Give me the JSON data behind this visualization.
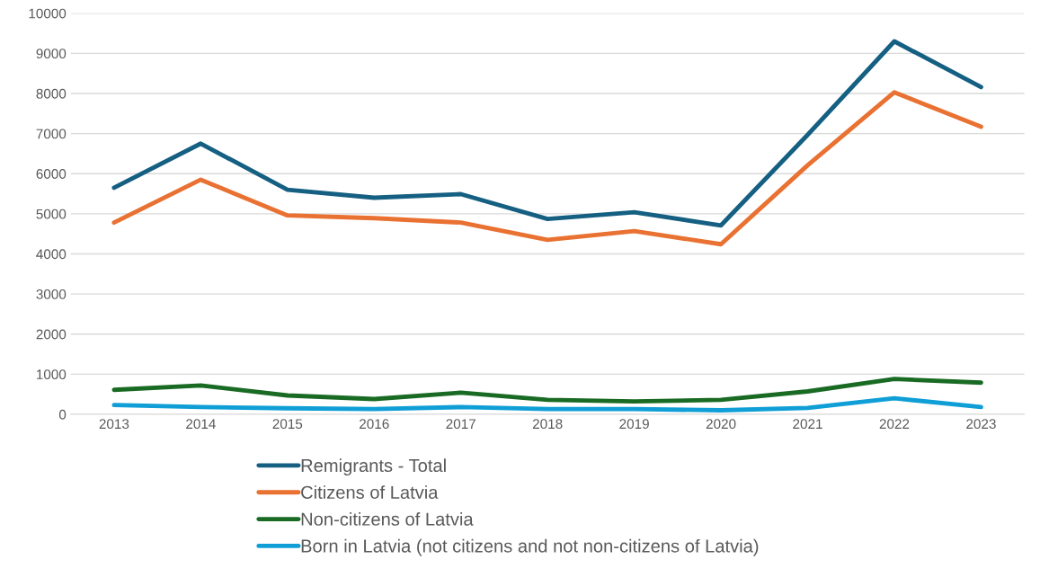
{
  "chart_data": {
    "type": "line",
    "categories": [
      "2013",
      "2014",
      "2015",
      "2016",
      "2017",
      "2018",
      "2019",
      "2020",
      "2021",
      "2022",
      "2023"
    ],
    "series": [
      {
        "name": "Remigrants - Total",
        "color": "#156082",
        "values": [
          5650,
          6750,
          5600,
          5400,
          5490,
          4870,
          5040,
          4710,
          6970,
          9300,
          8160
        ]
      },
      {
        "name": "Citizens of Latvia",
        "color": "#e97132",
        "values": [
          4780,
          5850,
          4960,
          4890,
          4780,
          4350,
          4570,
          4240,
          6210,
          8030,
          7170
        ]
      },
      {
        "name": "Non-citizens of Latvia",
        "color": "#196b24",
        "values": [
          610,
          720,
          470,
          380,
          540,
          360,
          320,
          360,
          570,
          880,
          790
        ]
      },
      {
        "name": "Born in Latvia (not citizens and not non-citizens of Latvia)",
        "color": "#0f9ed5",
        "values": [
          230,
          180,
          150,
          130,
          180,
          130,
          130,
          100,
          160,
          400,
          180
        ]
      }
    ],
    "ylim": [
      0,
      10000
    ],
    "yticks": [
      0,
      1000,
      2000,
      3000,
      4000,
      5000,
      6000,
      7000,
      8000,
      9000,
      10000
    ],
    "grid": "y",
    "legend": "bottom",
    "marker": "none",
    "line_style": "solid"
  }
}
